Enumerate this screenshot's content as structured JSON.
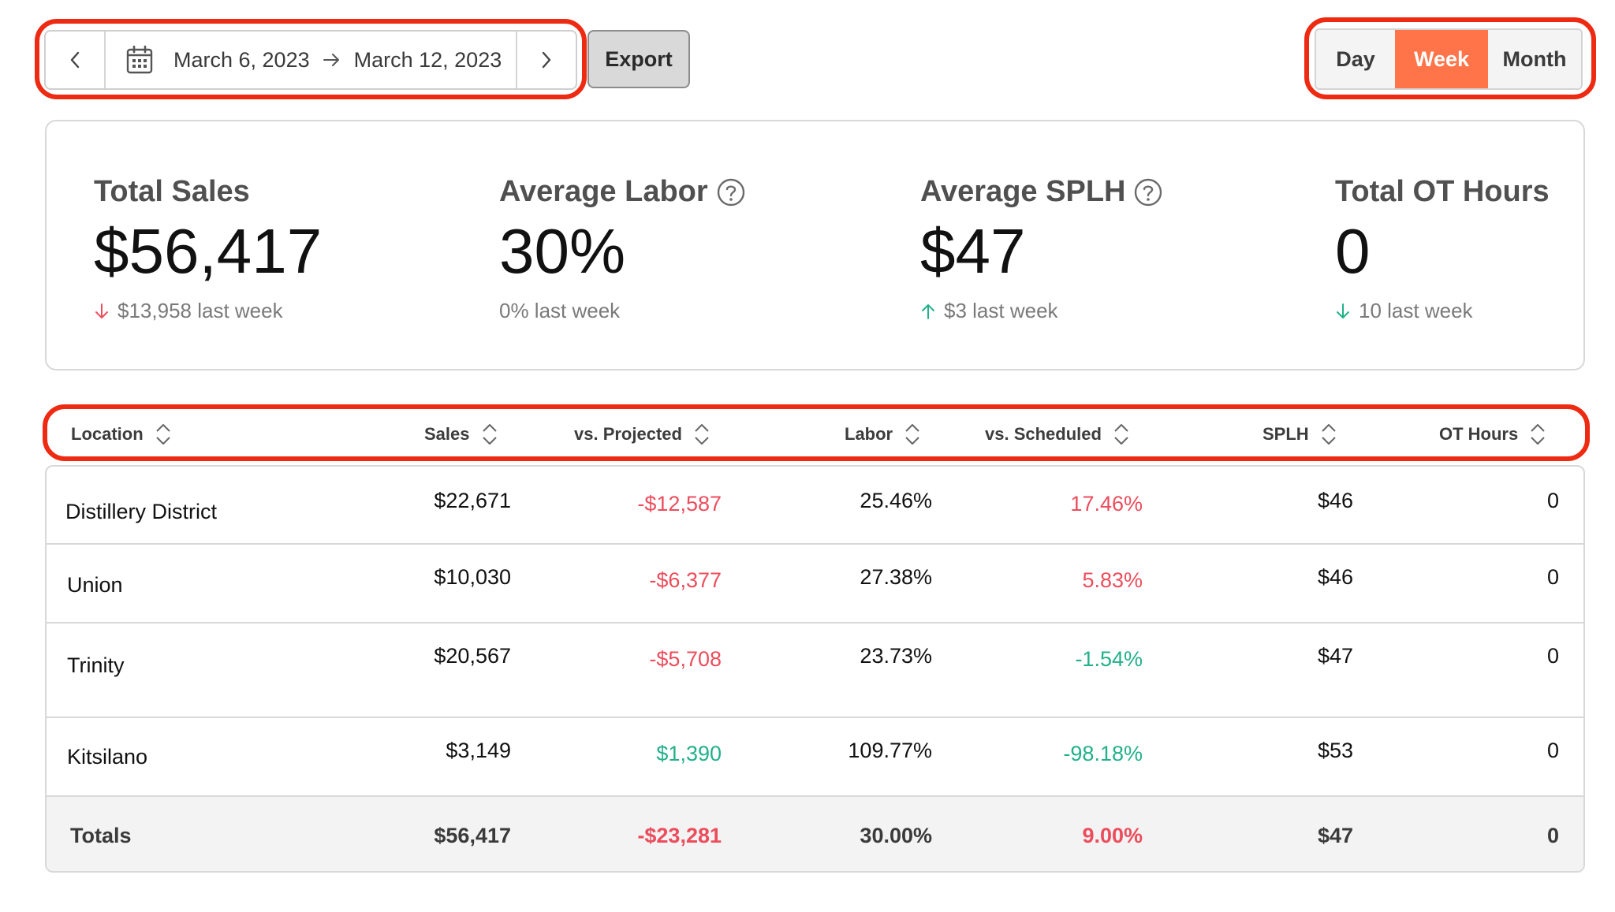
{
  "toolbar": {
    "start_date": "March 6, 2023",
    "end_date": "March 12, 2023",
    "export_label": "Export",
    "periods": [
      {
        "label": "Day",
        "active": false
      },
      {
        "label": "Week",
        "active": true
      },
      {
        "label": "Month",
        "active": false
      }
    ],
    "icons": {
      "prev": "chevron-left-icon",
      "next": "chevron-right-icon",
      "calendar": "calendar-icon",
      "range_arrow": "arrow-right-icon"
    }
  },
  "summary": {
    "total_sales": {
      "label": "Total Sales",
      "value": "$56,417",
      "delta": "$13,958 last week",
      "trend": "down"
    },
    "average_labor": {
      "label": "Average Labor",
      "value": "30%",
      "delta": "0% last week",
      "trend": "none"
    },
    "average_splh": {
      "label": "Average SPLH",
      "value": "$47",
      "delta": "$3 last week",
      "trend": "up"
    },
    "total_ot_hours": {
      "label": "Total OT Hours",
      "value": "0",
      "delta": "10 last week",
      "trend": "down"
    }
  },
  "table": {
    "columns": [
      "Location",
      "Sales",
      "vs. Projected",
      "Labor",
      "vs. Scheduled",
      "SPLH",
      "OT Hours"
    ],
    "rows": [
      {
        "location": "Distillery District",
        "sales": "$22,671",
        "vs_projected": "-$12,587",
        "labor": "25.46%",
        "vs_scheduled": "17.46%",
        "splh": "$46",
        "ot_hours": "0"
      },
      {
        "location": "Union",
        "sales": "$10,030",
        "vs_projected": "-$6,377",
        "labor": "27.38%",
        "vs_scheduled": "5.83%",
        "splh": "$46",
        "ot_hours": "0"
      },
      {
        "location": "Trinity",
        "sales": "$20,567",
        "vs_projected": "-$5,708",
        "labor": "23.73%",
        "vs_scheduled": "-1.54%",
        "splh": "$47",
        "ot_hours": "0"
      },
      {
        "location": "Kitsilano",
        "sales": "$3,149",
        "vs_projected": "$1,390",
        "labor": "109.77%",
        "vs_scheduled": "-98.18%",
        "splh": "$53",
        "ot_hours": "0"
      }
    ],
    "totals": {
      "location": "Totals",
      "sales": "$56,417",
      "vs_projected": "-$23,281",
      "labor": "30.00%",
      "vs_scheduled": "9.00%",
      "splh": "$47",
      "ot_hours": "0"
    }
  },
  "colors": {
    "accent": "#ff7448",
    "annotation": "#ee2a12",
    "negative": "#ec4d5c",
    "positive": "#22b08b"
  }
}
